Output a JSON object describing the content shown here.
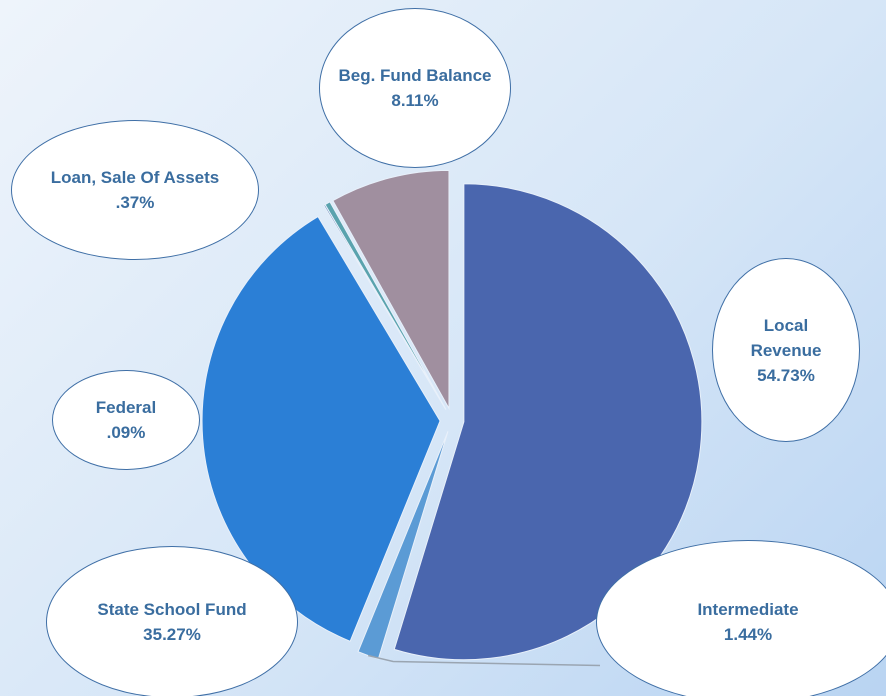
{
  "chart_data": {
    "type": "pie",
    "categories": [
      "Local Revenue",
      "Intermediate",
      "State School Fund",
      "Federal",
      "Loan, Sale Of Assets",
      "Beg. Fund Balance"
    ],
    "values": [
      54.73,
      1.44,
      35.27,
      0.09,
      0.37,
      8.11
    ],
    "value_labels": [
      "54.73%",
      "1.44%",
      "35.27%",
      ".09%",
      ".37%",
      "8.11%"
    ],
    "colors": [
      "#4a66ae",
      "#5b9bd5",
      "#2b7fd6",
      "#3f6fa6",
      "#5aa3ae",
      "#a08f9f"
    ]
  }
}
